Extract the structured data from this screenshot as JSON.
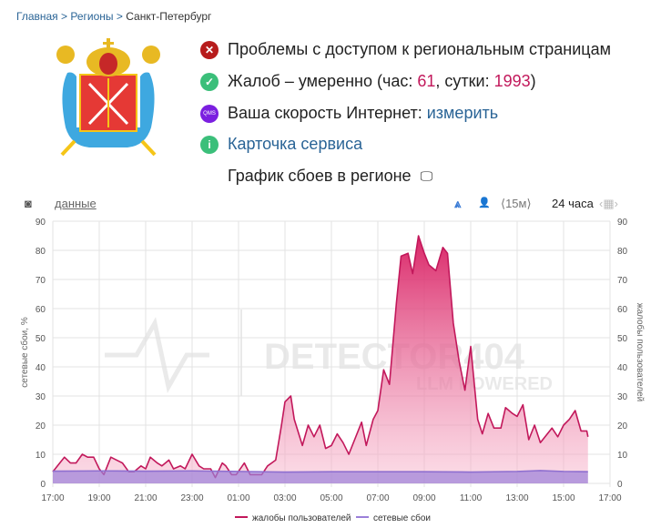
{
  "breadcrumb": {
    "items": [
      "Главная",
      "Регионы"
    ],
    "current": "Санкт-Петербург",
    "sep": ">"
  },
  "status": {
    "problem": "Проблемы с доступом к региональным страницам",
    "complaints_prefix": "Жалоб – умеренно (час: ",
    "hour": "61",
    "mid": ", сутки: ",
    "day": "1993",
    "suffix": ")",
    "speed_label": "Ваша скорость Интернет: ",
    "speed_link": "измерить",
    "qms": "QMS",
    "card": "Карточка сервиса",
    "graph_title": "График сбоев в регионе"
  },
  "toolbar": {
    "data": "данные",
    "interval": "⟨15м⟩",
    "range": "24 часа"
  },
  "watermark": {
    "name": "DETECTOR404",
    "sub": "LLM POWERED"
  },
  "colors": {
    "complaints": "#d6336c",
    "network": "#9b7fd9",
    "error": "#b71c1c",
    "ok": "#3bbf7a",
    "qms": "#7b1fe0",
    "info": "#3bbf7a"
  },
  "chart_data": {
    "type": "area",
    "ylabel_left": "сетевые сбои, %",
    "ylabel_right": "жалобы пользователей",
    "ylim": [
      0,
      90
    ],
    "yticks": [
      0,
      10,
      20,
      30,
      40,
      50,
      60,
      70,
      80,
      90
    ],
    "xlim_hours": [
      0,
      24
    ],
    "xticks": [
      "17:00",
      "19:00",
      "21:00",
      "23:00",
      "01:00",
      "03:00",
      "05:00",
      "07:00",
      "09:00",
      "11:00",
      "13:00",
      "15:00",
      "17:00"
    ],
    "legend": [
      "жалобы пользователей",
      "сетевые сбои"
    ],
    "legend_position": "bottom",
    "series": [
      {
        "name": "жалобы пользователей",
        "x": [
          0,
          0.5,
          0.76,
          1,
          1.27,
          1.5,
          1.76,
          2,
          2.2,
          2.5,
          3,
          3.27,
          3.5,
          3.8,
          4,
          4.2,
          4.5,
          4.7,
          5,
          5.2,
          5.5,
          5.7,
          6,
          6.3,
          6.5,
          6.8,
          7,
          7.3,
          7.45,
          7.7,
          7.9,
          8.25,
          8.5,
          9,
          9.25,
          9.6,
          9.85,
          10,
          10.25,
          10.4,
          10.75,
          11,
          11.25,
          11.5,
          11.75,
          12,
          12.25,
          12.5,
          12.75,
          13,
          13.3,
          13.5,
          13.8,
          14,
          14.25,
          14.5,
          14.8,
          15,
          15.3,
          15.5,
          15.75,
          16,
          16.2,
          16.5,
          16.8,
          17,
          17.25,
          17.5,
          17.75,
          18,
          18.3,
          18.5,
          18.75,
          19,
          19.3,
          19.5,
          19.8,
          20,
          20.25,
          20.5,
          20.75,
          21,
          21.5,
          21.75,
          22,
          22.25,
          22.5,
          22.75,
          23,
          23.05
        ],
        "values": [
          4,
          9,
          7,
          7,
          10,
          9,
          9,
          5,
          3,
          9,
          7,
          4,
          4,
          6,
          5,
          9,
          7,
          6,
          8,
          5,
          6,
          5,
          10,
          6,
          5,
          5,
          2,
          7,
          6,
          3,
          3,
          7,
          3,
          3,
          6,
          8,
          20,
          28,
          30,
          22,
          13,
          20,
          16,
          20,
          12,
          13,
          17,
          14,
          10,
          15,
          21,
          13,
          22,
          25,
          39,
          34,
          62,
          78,
          79,
          72,
          85,
          79,
          75,
          73,
          81,
          79,
          55,
          42,
          32,
          47,
          22,
          17,
          24,
          19,
          19,
          26,
          24,
          23,
          27,
          15,
          20,
          14,
          19,
          16,
          20,
          22,
          25,
          18,
          18,
          16
        ]
      },
      {
        "name": "сетевые сбои",
        "x": [
          0,
          2,
          4,
          6,
          8,
          10,
          12,
          14,
          16,
          18,
          20,
          21,
          22,
          23.05
        ],
        "values": [
          4.2,
          4.3,
          4.2,
          4.3,
          4.1,
          3.9,
          4.0,
          4.0,
          4.0,
          3.9,
          4.1,
          4.4,
          4.1,
          4.0
        ]
      }
    ]
  }
}
